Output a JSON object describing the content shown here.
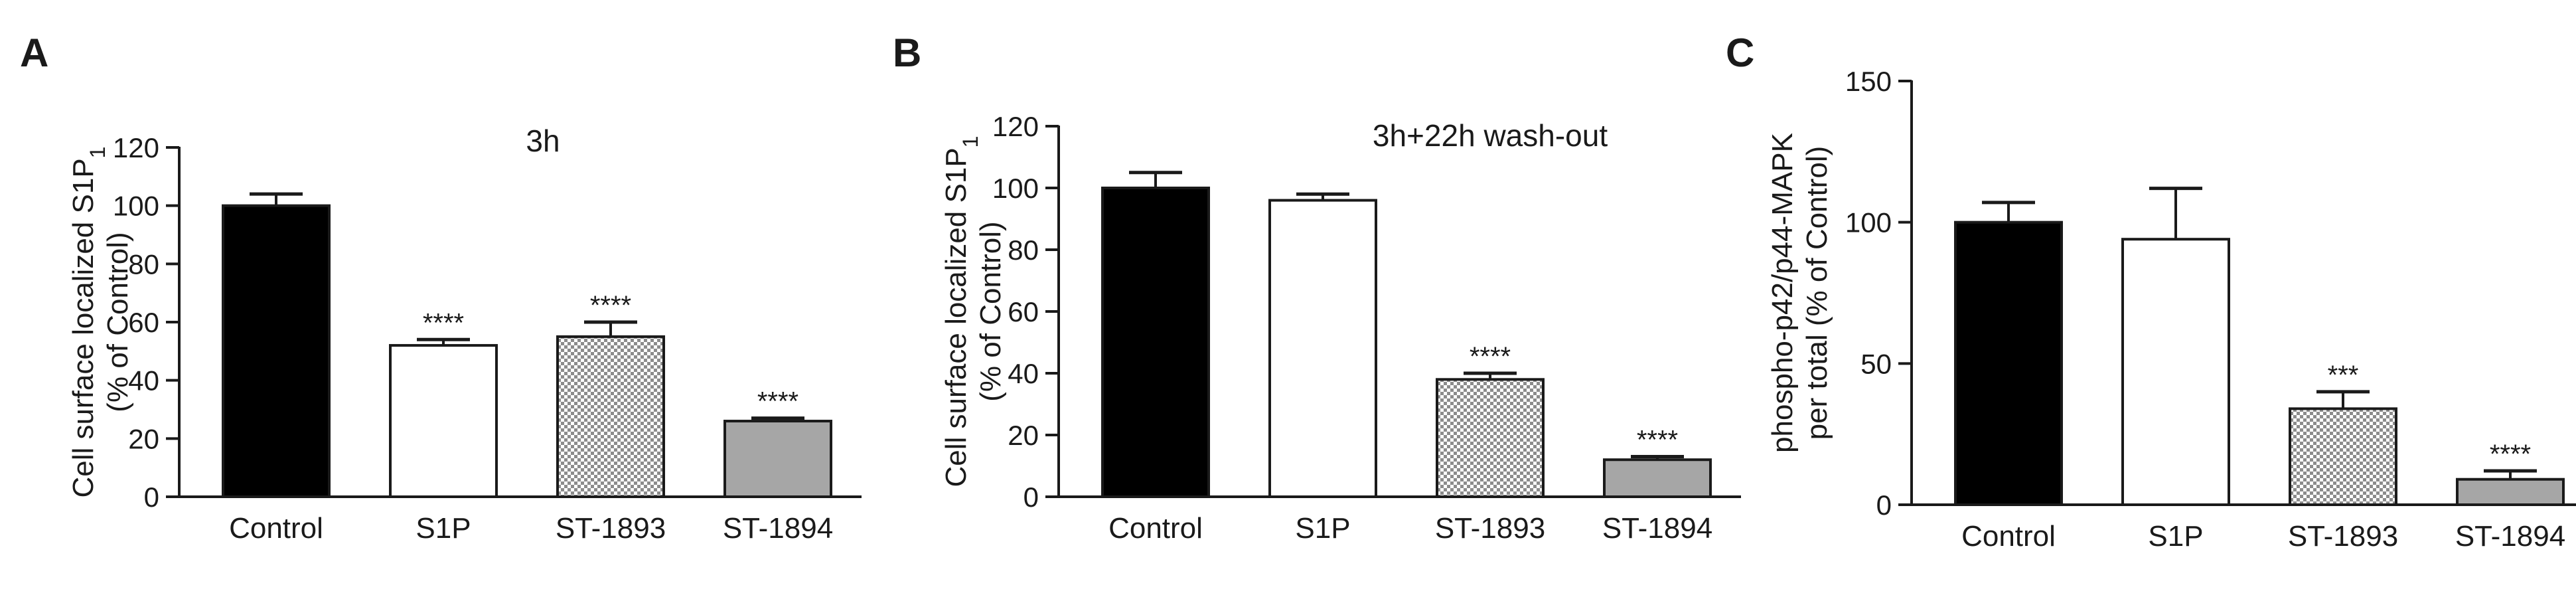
{
  "chart_data": [
    {
      "type": "bar",
      "panel_label": "A",
      "title": "3h",
      "ylabel_line1": "Cell surface localized S1P",
      "ylabel_sub": "1",
      "ylabel_line2": "(% of Control)",
      "categories": [
        "Control",
        "S1P",
        "ST-1893",
        "ST-1894"
      ],
      "values": [
        100,
        52,
        55,
        26
      ],
      "errors": [
        4,
        2,
        5,
        1
      ],
      "significance": [
        "",
        "****",
        "****",
        "****"
      ],
      "fills": [
        "#000000",
        "#ffffff",
        "pattern-checker",
        "#a6a6a6"
      ],
      "ylim": [
        0,
        120
      ],
      "yticks": [
        0,
        20,
        40,
        60,
        80,
        100,
        120
      ]
    },
    {
      "type": "bar",
      "panel_label": "B",
      "title": "3h+22h wash-out",
      "ylabel_line1": "Cell surface localized S1P",
      "ylabel_sub": "1",
      "ylabel_line2": "(% of Control)",
      "categories": [
        "Control",
        "S1P",
        "ST-1893",
        "ST-1894"
      ],
      "values": [
        100,
        96,
        38,
        12
      ],
      "errors": [
        5,
        2,
        2,
        1
      ],
      "significance": [
        "",
        "",
        "****",
        "****"
      ],
      "fills": [
        "#000000",
        "#ffffff",
        "pattern-checker",
        "#a6a6a6"
      ],
      "ylim": [
        0,
        120
      ],
      "yticks": [
        0,
        20,
        40,
        60,
        80,
        100,
        120
      ]
    },
    {
      "type": "bar",
      "panel_label": "C",
      "title": "",
      "ylabel_line1": "phospho-p42/p44-MAPK",
      "ylabel_sub": "",
      "ylabel_line2": "per total (% of Control)",
      "categories": [
        "Control",
        "S1P",
        "ST-1893",
        "ST-1894"
      ],
      "values": [
        100,
        94,
        34,
        9
      ],
      "errors": [
        7,
        18,
        6,
        3
      ],
      "significance": [
        "",
        "",
        "***",
        "****"
      ],
      "fills": [
        "#000000",
        "#ffffff",
        "pattern-checker",
        "#a6a6a6"
      ],
      "ylim": [
        0,
        150
      ],
      "yticks": [
        0,
        50,
        100,
        150
      ]
    }
  ]
}
